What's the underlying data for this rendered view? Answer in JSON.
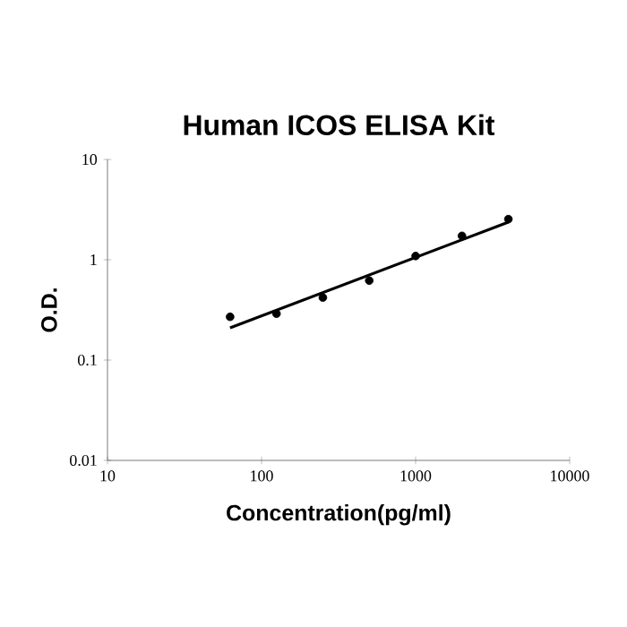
{
  "chart_data": {
    "type": "scatter",
    "title": "Human ICOS ELISA Kit",
    "xlabel": "Concentration(pg/ml)",
    "ylabel": "O.D.",
    "log": "xy",
    "xlim": [
      10,
      10000
    ],
    "ylim": [
      0.01,
      10
    ],
    "xticks": [
      10,
      100,
      1000,
      10000
    ],
    "yticks": [
      0.01,
      0.1,
      1,
      10
    ],
    "marker": "circle",
    "series": [
      {
        "color": "#000000",
        "x": [
          62.5,
          125,
          250,
          500,
          1000,
          2000,
          4000
        ],
        "values": [
          0.27,
          0.29,
          0.42,
          0.62,
          1.09,
          1.73,
          2.54
        ]
      },
      {
        "type": "line",
        "color": "#000000",
        "marker": "none",
        "x": [
          62.5,
          4000
        ],
        "values": [
          0.21,
          2.37
        ]
      }
    ]
  }
}
